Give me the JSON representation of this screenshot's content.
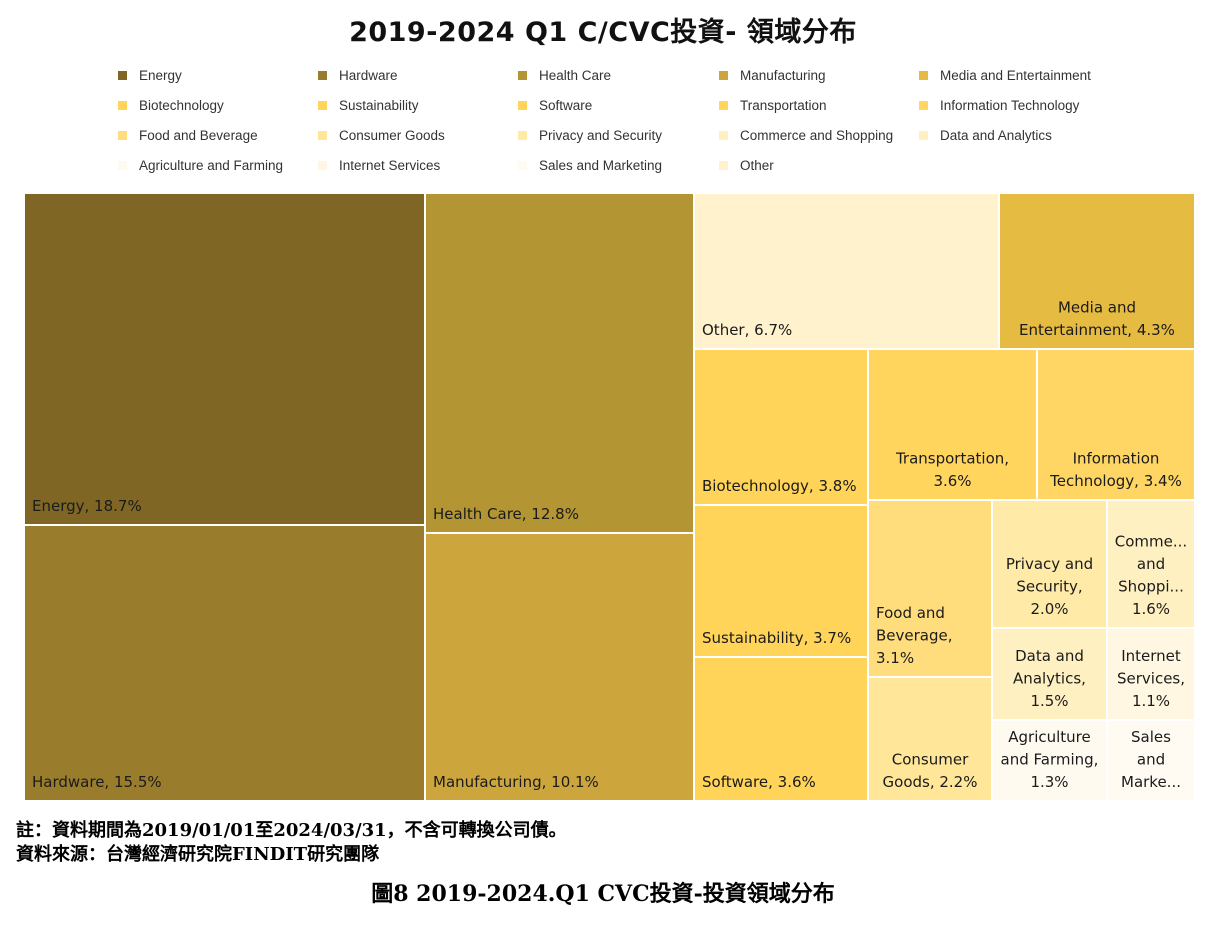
{
  "chart_data": {
    "type": "treemap",
    "title": "2019-2024 Q1 C/CVC投資- 領域分布",
    "legend_position": "top",
    "series": [
      {
        "name": "Energy",
        "value": 18.7,
        "color": "#7f6624",
        "label_lines": [
          "Energy, 18.7%"
        ]
      },
      {
        "name": "Hardware",
        "value": 15.5,
        "color": "#9a7d2c",
        "label_lines": [
          "Hardware, 15.5%"
        ]
      },
      {
        "name": "Health Care",
        "value": 12.8,
        "color": "#b39534",
        "label_lines": [
          "Health Care, 12.8%"
        ]
      },
      {
        "name": "Manufacturing",
        "value": 10.1,
        "color": "#cca63d",
        "label_lines": [
          "Manufacturing, 10.1%"
        ]
      },
      {
        "name": "Media and Entertainment",
        "value": 4.3,
        "color": "#e5bb42",
        "label_lines": [
          "Media and",
          "Entertainment, 4.3%"
        ]
      },
      {
        "name": "Biotechnology",
        "value": 3.8,
        "color": "#ffd458",
        "label_lines": [
          "Biotechnology, 3.8%"
        ]
      },
      {
        "name": "Sustainability",
        "value": 3.7,
        "color": "#ffd458",
        "label_lines": [
          "Sustainability, 3.7%"
        ]
      },
      {
        "name": "Software",
        "value": 3.6,
        "color": "#ffd458",
        "label_lines": [
          "Software, 3.6%"
        ]
      },
      {
        "name": "Transportation",
        "value": 3.6,
        "color": "#ffd55e",
        "label_lines": [
          "Transportation,",
          "3.6%"
        ]
      },
      {
        "name": "Information Technology",
        "value": 3.4,
        "color": "#ffd664",
        "label_lines": [
          "Information",
          "Technology, 3.4%"
        ]
      },
      {
        "name": "Food and Beverage",
        "value": 3.1,
        "color": "#ffdd7c",
        "label_lines": [
          "Food and",
          "Beverage,",
          "3.1%"
        ]
      },
      {
        "name": "Consumer Goods",
        "value": 2.2,
        "color": "#ffe699",
        "label_lines": [
          "Consumer",
          "Goods, 2.2%"
        ]
      },
      {
        "name": "Privacy and Security",
        "value": 2.0,
        "color": "#ffeaa8",
        "label_lines": [
          "Privacy and",
          "Security,",
          "2.0%"
        ]
      },
      {
        "name": "Commerce and Shopping",
        "value": 1.6,
        "color": "#fff0c2",
        "label_lines": [
          "Comme...",
          "and",
          "Shoppi...",
          "1.6%"
        ]
      },
      {
        "name": "Data and Analytics",
        "value": 1.5,
        "color": "#fff0c2",
        "label_lines": [
          "Data and",
          "Analytics,",
          "1.5%"
        ]
      },
      {
        "name": "Internet Services",
        "value": 1.1,
        "color": "#fff7e2",
        "label_lines": [
          "Internet",
          "Services,",
          "1.1%"
        ]
      },
      {
        "name": "Agriculture and Farming",
        "value": 1.3,
        "color": "#fffaf0",
        "label_lines": [
          "Agriculture",
          "and Farming,",
          "1.3%"
        ]
      },
      {
        "name": "Sales and Marketing",
        "value": 0.9,
        "color": "#fffbf2",
        "label_lines": [
          "Sales",
          "and",
          "Marke..."
        ]
      },
      {
        "name": "Other",
        "value": 6.7,
        "color": "#fff2cc",
        "label_lines": [
          "Other, 6.7%"
        ]
      }
    ],
    "legend_order": [
      "Energy",
      "Hardware",
      "Health Care",
      "Manufacturing",
      "Media and Entertainment",
      "Biotechnology",
      "Sustainability",
      "Software",
      "Transportation",
      "Information Technology",
      "Food and Beverage",
      "Consumer Goods",
      "Privacy and Security",
      "Commerce and Shopping",
      "Data and Analytics",
      "Agriculture and Farming",
      "Internet Services",
      "Sales and Marketing",
      "Other"
    ],
    "legend_colors": {
      "Energy": "#7f6624",
      "Hardware": "#9a7d2c",
      "Health Care": "#b39534",
      "Manufacturing": "#cca63d",
      "Media and Entertainment": "#e5bb42",
      "Biotechnology": "#ffd458",
      "Sustainability": "#ffd458",
      "Software": "#ffd458",
      "Transportation": "#ffd55e",
      "Information Technology": "#ffd664",
      "Food and Beverage": "#ffdd7c",
      "Consumer Goods": "#ffe699",
      "Privacy and Security": "#ffeaa8",
      "Commerce and Shopping": "#fff0c2",
      "Data and Analytics": "#fff0c2",
      "Agriculture and Farming": "#fffaf0",
      "Internet Services": "#fff7e2",
      "Sales and Marketing": "#fffbf2",
      "Other": "#fff2cc"
    }
  },
  "notes": {
    "note_line": "註：資料期間為2019/01/01至2024/03/31，不含可轉換公司債。",
    "source_line": "資料來源：台灣經濟研究院FINDIT研究團隊"
  },
  "caption": "圖8  2019-2024.Q1 CVC投資-投資領域分布"
}
